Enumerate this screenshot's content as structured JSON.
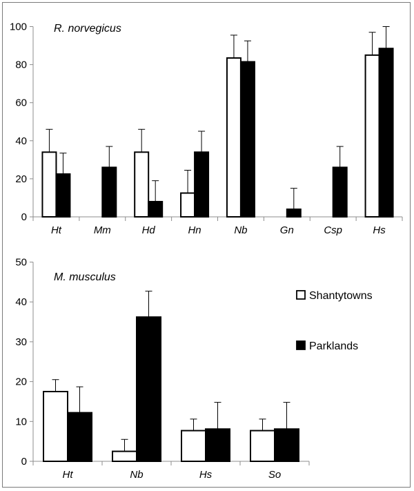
{
  "chart_data": [
    {
      "type": "bar",
      "title": "R. norvegicus",
      "categories": [
        "Ht",
        "Mm",
        "Hd",
        "Hn",
        "Nb",
        "Gn",
        "Csp",
        "Hs"
      ],
      "ylim": [
        0,
        100
      ],
      "yticks": [
        0,
        20,
        40,
        60,
        80,
        100
      ],
      "series": [
        {
          "name": "Shantytowns",
          "values": [
            34,
            0,
            34,
            12.5,
            83.5,
            0,
            0,
            85
          ],
          "errors": [
            12,
            0,
            12,
            12,
            12,
            0,
            0,
            12
          ]
        },
        {
          "name": "Parklands",
          "values": [
            22.5,
            26,
            8,
            34,
            81.5,
            4,
            26,
            88.5
          ],
          "errors": [
            11,
            11,
            11,
            11,
            11,
            11,
            11,
            11.5
          ]
        }
      ]
    },
    {
      "type": "bar",
      "title": "M. musculus",
      "categories": [
        "Ht",
        "Nb",
        "Hs",
        "So"
      ],
      "ylim": [
        0,
        50
      ],
      "yticks": [
        0,
        10,
        20,
        30,
        40,
        50
      ],
      "series": [
        {
          "name": "Shantytowns",
          "values": [
            17.5,
            2.5,
            7.7,
            7.7
          ],
          "errors": [
            3,
            3,
            2.9,
            2.9
          ]
        },
        {
          "name": "Parklands",
          "values": [
            12.2,
            36.2,
            8.1,
            8.1
          ],
          "errors": [
            6.5,
            6.5,
            6.7,
            6.7
          ]
        }
      ]
    }
  ],
  "legend": {
    "entries": [
      {
        "label": "Shantytowns",
        "fill": "#ffffff"
      },
      {
        "label": "Parklands",
        "fill": "#000000"
      }
    ],
    "placement": "right of bottom chart"
  },
  "colors": {
    "bar_outline": "#000000",
    "axis": "#8c8c8c",
    "frame": "#7a7a7a"
  }
}
